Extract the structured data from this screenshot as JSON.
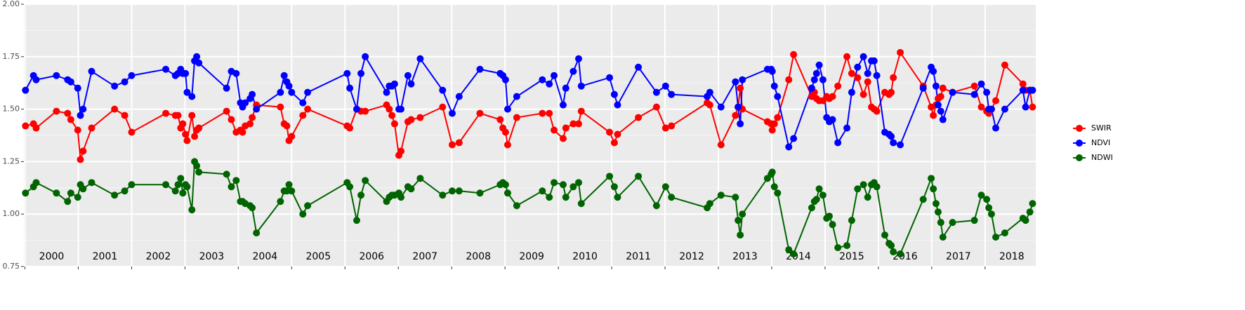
{
  "chart_data": {
    "type": "line",
    "x": [
      2000.01,
      2000.16,
      2000.21,
      2000.59,
      2000.8,
      2000.86,
      2000.99,
      2001.04,
      2001.09,
      2001.25,
      2001.68,
      2001.87,
      2002.0,
      2002.64,
      2002.82,
      2002.87,
      2002.92,
      2002.96,
      2003.01,
      2003.04,
      2003.13,
      2003.18,
      2003.22,
      2003.26,
      2003.78,
      2003.87,
      2003.96,
      2004.04,
      2004.08,
      2004.13,
      2004.22,
      2004.26,
      2004.34,
      2004.79,
      2004.86,
      2004.91,
      2004.95,
      2005.0,
      2005.21,
      2005.3,
      2006.04,
      2006.09,
      2006.22,
      2006.3,
      2006.38,
      2006.78,
      2006.83,
      2006.88,
      2006.93,
      2007.01,
      2007.05,
      2007.18,
      2007.24,
      2007.41,
      2007.83,
      2008.01,
      2008.14,
      2008.53,
      2008.91,
      2008.96,
      2009.01,
      2009.05,
      2009.22,
      2009.7,
      2009.83,
      2009.92,
      2010.09,
      2010.14,
      2010.28,
      2010.38,
      2010.43,
      2010.96,
      2011.05,
      2011.11,
      2011.5,
      2011.84,
      2012.01,
      2012.12,
      2012.79,
      2012.84,
      2013.05,
      2013.32,
      2013.37,
      2013.41,
      2013.45,
      2013.92,
      2013.99,
      2014.01,
      2014.05,
      2014.11,
      2014.32,
      2014.41,
      2014.75,
      2014.8,
      2014.84,
      2014.89,
      2014.96,
      2015.03,
      2015.08,
      2015.14,
      2015.24,
      2015.41,
      2015.5,
      2015.61,
      2015.72,
      2015.8,
      2015.87,
      2015.92,
      2015.97,
      2016.12,
      2016.2,
      2016.24,
      2016.28,
      2016.41,
      2016.84,
      2016.99,
      2017.03,
      2017.08,
      2017.12,
      2017.17,
      2017.21,
      2017.39,
      2017.8,
      2017.93,
      2018.03,
      2018.07,
      2018.12,
      2018.2,
      2018.37,
      2018.71,
      2018.76,
      2018.84,
      2018.89
    ],
    "series": [
      {
        "name": "SWIR",
        "color": "#ff0000",
        "values": [
          1.42,
          1.43,
          1.41,
          1.49,
          1.48,
          1.45,
          1.4,
          1.26,
          1.3,
          1.41,
          1.5,
          1.47,
          1.39,
          1.48,
          1.47,
          1.47,
          1.41,
          1.43,
          1.38,
          1.35,
          1.47,
          1.37,
          1.4,
          1.41,
          1.49,
          1.45,
          1.39,
          1.4,
          1.39,
          1.42,
          1.43,
          1.46,
          1.52,
          1.51,
          1.43,
          1.42,
          1.35,
          1.37,
          1.47,
          1.5,
          1.42,
          1.41,
          1.5,
          1.49,
          1.49,
          1.52,
          1.5,
          1.47,
          1.43,
          1.28,
          1.3,
          1.44,
          1.45,
          1.46,
          1.51,
          1.33,
          1.34,
          1.48,
          1.45,
          1.41,
          1.39,
          1.33,
          1.46,
          1.48,
          1.48,
          1.4,
          1.36,
          1.41,
          1.43,
          1.43,
          1.49,
          1.39,
          1.34,
          1.38,
          1.46,
          1.51,
          1.41,
          1.42,
          1.53,
          1.52,
          1.33,
          1.47,
          1.51,
          1.6,
          1.5,
          1.44,
          1.43,
          1.4,
          1.43,
          1.46,
          1.64,
          1.76,
          1.56,
          1.58,
          1.55,
          1.54,
          1.54,
          1.56,
          1.55,
          1.56,
          1.61,
          1.75,
          1.67,
          1.65,
          1.57,
          1.63,
          1.51,
          1.5,
          1.49,
          1.58,
          1.57,
          1.58,
          1.65,
          1.77,
          1.61,
          1.51,
          1.47,
          1.52,
          1.55,
          1.56,
          1.6,
          1.58,
          1.61,
          1.51,
          1.49,
          1.48,
          1.5,
          1.54,
          1.71,
          1.62,
          1.59,
          1.59,
          1.51
        ]
      },
      {
        "name": "NDVI",
        "color": "#0000ff",
        "values": [
          1.59,
          1.66,
          1.64,
          1.66,
          1.64,
          1.63,
          1.6,
          1.47,
          1.5,
          1.68,
          1.61,
          1.63,
          1.66,
          1.69,
          1.66,
          1.67,
          1.69,
          1.67,
          1.67,
          1.58,
          1.56,
          1.73,
          1.75,
          1.72,
          1.6,
          1.68,
          1.67,
          1.53,
          1.51,
          1.53,
          1.55,
          1.57,
          1.5,
          1.58,
          1.66,
          1.63,
          1.61,
          1.58,
          1.53,
          1.58,
          1.67,
          1.6,
          1.5,
          1.67,
          1.75,
          1.58,
          1.61,
          1.61,
          1.62,
          1.5,
          1.5,
          1.66,
          1.62,
          1.74,
          1.59,
          1.48,
          1.56,
          1.69,
          1.67,
          1.66,
          1.64,
          1.5,
          1.56,
          1.64,
          1.62,
          1.66,
          1.52,
          1.6,
          1.68,
          1.74,
          1.61,
          1.65,
          1.57,
          1.52,
          1.7,
          1.58,
          1.61,
          1.57,
          1.56,
          1.58,
          1.51,
          1.63,
          1.51,
          1.43,
          1.64,
          1.69,
          1.69,
          1.68,
          1.61,
          1.56,
          1.32,
          1.36,
          1.6,
          1.64,
          1.67,
          1.71,
          1.64,
          1.46,
          1.44,
          1.45,
          1.34,
          1.41,
          1.58,
          1.7,
          1.75,
          1.67,
          1.73,
          1.73,
          1.66,
          1.39,
          1.38,
          1.37,
          1.34,
          1.33,
          1.6,
          1.7,
          1.68,
          1.61,
          1.52,
          1.49,
          1.45,
          1.58,
          1.57,
          1.62,
          1.58,
          1.5,
          1.5,
          1.41,
          1.5,
          1.59,
          1.51,
          1.59,
          1.59
        ]
      },
      {
        "name": "NDWI",
        "color": "#006400",
        "values": [
          1.1,
          1.13,
          1.15,
          1.1,
          1.06,
          1.1,
          1.08,
          1.14,
          1.12,
          1.15,
          1.09,
          1.11,
          1.14,
          1.14,
          1.11,
          1.14,
          1.17,
          1.1,
          1.14,
          1.13,
          1.02,
          1.25,
          1.23,
          1.2,
          1.19,
          1.13,
          1.16,
          1.06,
          1.06,
          1.05,
          1.04,
          1.03,
          0.91,
          1.06,
          1.11,
          1.11,
          1.14,
          1.11,
          1.0,
          1.04,
          1.15,
          1.13,
          0.97,
          1.09,
          1.16,
          1.06,
          1.08,
          1.09,
          1.09,
          1.1,
          1.08,
          1.13,
          1.12,
          1.17,
          1.09,
          1.11,
          1.11,
          1.1,
          1.14,
          1.15,
          1.14,
          1.1,
          1.04,
          1.11,
          1.08,
          1.15,
          1.14,
          1.08,
          1.13,
          1.15,
          1.05,
          1.18,
          1.13,
          1.08,
          1.18,
          1.04,
          1.13,
          1.08,
          1.03,
          1.05,
          1.09,
          1.08,
          0.97,
          0.9,
          1.0,
          1.17,
          1.19,
          1.2,
          1.13,
          1.1,
          0.83,
          0.81,
          1.03,
          1.06,
          1.07,
          1.12,
          1.09,
          0.98,
          0.99,
          0.95,
          0.84,
          0.85,
          0.97,
          1.12,
          1.14,
          1.08,
          1.14,
          1.15,
          1.13,
          0.9,
          0.86,
          0.85,
          0.82,
          0.81,
          1.07,
          1.17,
          1.12,
          1.05,
          1.01,
          0.96,
          0.89,
          0.96,
          0.97,
          1.09,
          1.07,
          1.03,
          1.0,
          0.89,
          0.91,
          0.98,
          0.97,
          1.01,
          1.05
        ]
      }
    ],
    "xlim": [
      1999.98,
      2018.95
    ],
    "xticks": [
      2000,
      2001,
      2002,
      2003,
      2004,
      2005,
      2006,
      2007,
      2008,
      2009,
      2010,
      2011,
      2012,
      2013,
      2014,
      2015,
      2016,
      2017,
      2018
    ],
    "ylim": [
      0.75,
      2
    ],
    "yticks": [
      {
        "value": 0.75,
        "label": "0.75"
      },
      {
        "value": 1,
        "label": "1.00"
      },
      {
        "value": 1.25,
        "label": "1.25"
      },
      {
        "value": 1.5,
        "label": "1.50"
      },
      {
        "value": 1.75,
        "label": "1.75"
      },
      {
        "value": 2,
        "label": "2.00"
      }
    ],
    "grid": true,
    "legend": "right"
  }
}
